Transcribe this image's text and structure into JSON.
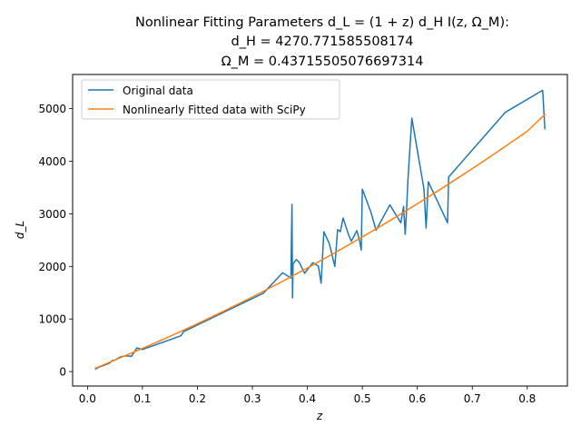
{
  "chart_data": {
    "type": "line",
    "title_lines": [
      "Nonlinear Fitting Parameters d_L = (1 + z) d_H I(z, Ω_M):",
      "d_H = 4270.771585508174",
      "Ω_M = 0.43715505076697314"
    ],
    "xlabel": "z",
    "ylabel": "d_L",
    "xlim": [
      -0.027,
      0.873
    ],
    "ylim": [
      -275,
      5650
    ],
    "xticks": [
      0.0,
      0.1,
      0.2,
      0.3,
      0.4,
      0.5,
      0.6,
      0.7,
      0.8
    ],
    "xtick_labels": [
      "0.0",
      "0.1",
      "0.2",
      "0.3",
      "0.4",
      "0.5",
      "0.6",
      "0.7",
      "0.8"
    ],
    "yticks": [
      0,
      1000,
      2000,
      3000,
      4000,
      5000
    ],
    "ytick_labels": [
      "0",
      "1000",
      "2000",
      "3000",
      "4000",
      "5000"
    ],
    "grid": false,
    "legend_position": "upper-left",
    "series": [
      {
        "name": "Original data",
        "color": "#1f77b4",
        "x": [
          0.015,
          0.02,
          0.03,
          0.04,
          0.045,
          0.05,
          0.06,
          0.07,
          0.08,
          0.09,
          0.1,
          0.17,
          0.175,
          0.32,
          0.355,
          0.37,
          0.372,
          0.373,
          0.374,
          0.38,
          0.385,
          0.395,
          0.41,
          0.42,
          0.425,
          0.43,
          0.44,
          0.45,
          0.455,
          0.46,
          0.465,
          0.475,
          0.48,
          0.49,
          0.495,
          0.498,
          0.5,
          0.515,
          0.525,
          0.55,
          0.57,
          0.575,
          0.578,
          0.58,
          0.583,
          0.59,
          0.612,
          0.616,
          0.62,
          0.655,
          0.657,
          0.76,
          0.828,
          0.832
        ],
        "y": [
          50,
          80,
          120,
          160,
          210,
          220,
          280,
          300,
          290,
          450,
          420,
          680,
          760,
          1490,
          1880,
          1780,
          3180,
          1400,
          2050,
          2130,
          2080,
          1870,
          2070,
          2010,
          1680,
          2660,
          2430,
          2000,
          2700,
          2660,
          2920,
          2600,
          2480,
          2680,
          2490,
          2310,
          3470,
          3050,
          2690,
          3170,
          2830,
          3140,
          2610,
          2980,
          3650,
          4820,
          3480,
          2730,
          3610,
          2830,
          3700,
          4930,
          5350,
          4620
        ]
      },
      {
        "name": "Nonlinearly Fitted data with SciPy",
        "color": "#ff7f0e",
        "x": [
          0.015,
          0.05,
          0.1,
          0.15,
          0.2,
          0.25,
          0.3,
          0.35,
          0.4,
          0.45,
          0.5,
          0.55,
          0.6,
          0.65,
          0.7,
          0.75,
          0.8,
          0.832
        ],
        "y": [
          65,
          220,
          440,
          670,
          910,
          1160,
          1420,
          1690,
          1970,
          2260,
          2560,
          2870,
          3190,
          3520,
          3860,
          4210,
          4570,
          4890
        ]
      }
    ]
  }
}
